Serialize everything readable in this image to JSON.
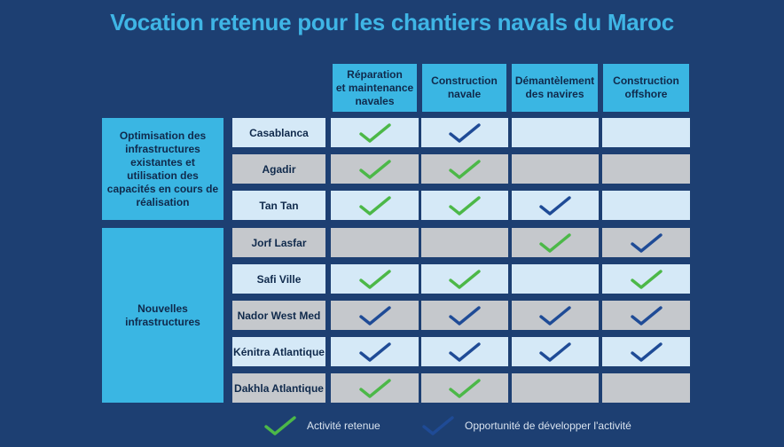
{
  "title": "Vocation retenue pour les chantiers navals du Maroc",
  "columns": [
    {
      "line1": "Réparation",
      "line2": "et maintenance",
      "line3": "navales"
    },
    {
      "line1": "Construction",
      "line2": "navale",
      "line3": ""
    },
    {
      "line1": "Démantèlement",
      "line2": "des navires",
      "line3": ""
    },
    {
      "line1": "Construction",
      "line2": "offshore",
      "line3": ""
    }
  ],
  "groups": [
    {
      "label": "Optimisation des infrastructures existantes et utilisation des capacités en cours de réalisation"
    },
    {
      "label": "Nouvelles infrastructures"
    }
  ],
  "rows": [
    {
      "name": "Casablanca",
      "row_shade": "light",
      "marks": [
        "green",
        "blue",
        "",
        ""
      ]
    },
    {
      "name": "Agadir",
      "row_shade": "grey",
      "marks": [
        "green",
        "green",
        "",
        ""
      ]
    },
    {
      "name": "Tan Tan",
      "row_shade": "light",
      "marks": [
        "green",
        "green",
        "blue",
        ""
      ]
    },
    {
      "name": "Jorf Lasfar",
      "row_shade": "grey",
      "marks": [
        "",
        "",
        "green",
        "blue"
      ]
    },
    {
      "name": "Safi Ville",
      "row_shade": "light",
      "marks": [
        "green",
        "green",
        "",
        "green"
      ]
    },
    {
      "name": "Nador West Med",
      "row_shade": "grey",
      "marks": [
        "blue",
        "blue",
        "blue",
        "blue"
      ]
    },
    {
      "name": "Kénitra Atlantique",
      "row_shade": "light",
      "marks": [
        "blue",
        "blue",
        "blue",
        "blue"
      ]
    },
    {
      "name": "Dakhla Atlantique",
      "row_shade": "grey",
      "marks": [
        "green",
        "green",
        "",
        ""
      ]
    }
  ],
  "legend": [
    {
      "mark": "green",
      "label": "Activité retenue"
    },
    {
      "mark": "blue",
      "label": "Opportunité de développer l'activité"
    }
  ],
  "colors": {
    "background": "#1d3f72",
    "header": "#3ab6e3",
    "title": "#3fb5e5",
    "green_check": "#4cb848",
    "blue_check": "#1f4b96"
  }
}
